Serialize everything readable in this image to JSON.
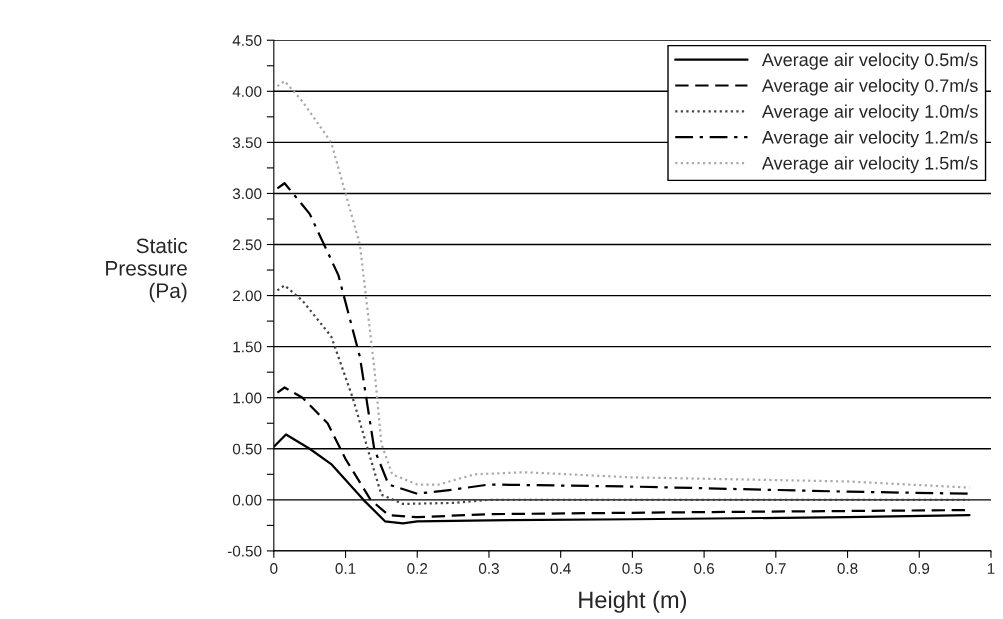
{
  "chart_data": {
    "type": "line",
    "xlabel": "Height (m)",
    "ylabel": "Static\nPressure\n(Pa)",
    "xlim": [
      0,
      1
    ],
    "xticks": [
      0,
      0.1,
      0.2,
      0.3,
      0.4,
      0.5,
      0.6,
      0.7,
      0.8,
      0.9,
      1
    ],
    "ylim": [
      -0.5,
      4.5
    ],
    "yticks": [
      {
        "value": -0.5,
        "label": "-0.50"
      },
      {
        "value": -0.25,
        "label": null
      },
      {
        "value": 0,
        "label": "0.00"
      },
      {
        "value": 0.25,
        "label": null
      },
      {
        "value": 0.5,
        "label": "0.50"
      },
      {
        "value": 0.75,
        "label": null
      },
      {
        "value": 1,
        "label": "1.00"
      },
      {
        "value": 1.25,
        "label": null
      },
      {
        "value": 1.5,
        "label": "1.50"
      },
      {
        "value": 1.75,
        "label": null
      },
      {
        "value": 2,
        "label": "2.00"
      },
      {
        "value": 2.25,
        "label": null
      },
      {
        "value": 2.5,
        "label": "2.50"
      },
      {
        "value": 2.75,
        "label": null
      },
      {
        "value": 3,
        "label": "3.00"
      },
      {
        "value": 3.25,
        "label": null
      },
      {
        "value": 3.5,
        "label": "3.50"
      },
      {
        "value": 3.75,
        "label": null
      },
      {
        "value": 4,
        "label": "4.00"
      },
      {
        "value": 4.25,
        "label": null
      },
      {
        "value": 4.5,
        "label": "4.50"
      }
    ],
    "grid": "y",
    "legend": "top right",
    "series": [
      {
        "name": "Average air velocity 0.5m/s",
        "color": "#000000",
        "line_style": "solid",
        "x": [
          0,
          0.017,
          0.05,
          0.08,
          0.125,
          0.155,
          0.18,
          0.2,
          0.3,
          0.5,
          0.8,
          0.97
        ],
        "values": [
          0.52,
          0.64,
          0.5,
          0.35,
          0.0,
          -0.21,
          -0.23,
          -0.21,
          -0.2,
          -0.19,
          -0.17,
          -0.15
        ]
      },
      {
        "name": "Average air velocity 0.7m/s",
        "color": "#000000",
        "line_style": "dashed",
        "x": [
          0.005,
          0.015,
          0.04,
          0.075,
          0.1,
          0.135,
          0.16,
          0.2,
          0.3,
          0.6,
          0.97
        ],
        "values": [
          1.05,
          1.1,
          1.0,
          0.75,
          0.4,
          0.0,
          -0.15,
          -0.17,
          -0.14,
          -0.12,
          -0.1
        ]
      },
      {
        "name": "Average air velocity 1.0m/s",
        "color": "#444444",
        "line_style": "dotted",
        "x": [
          0.005,
          0.015,
          0.04,
          0.08,
          0.11,
          0.135,
          0.15,
          0.18,
          0.25,
          0.3,
          0.97
        ],
        "values": [
          2.05,
          2.1,
          1.95,
          1.6,
          1.0,
          0.4,
          0.05,
          -0.04,
          -0.03,
          0.0,
          0.0
        ]
      },
      {
        "name": "Average air velocity 1.2m/s",
        "color": "#000000",
        "line_style": "dashdot",
        "x": [
          0.005,
          0.015,
          0.05,
          0.09,
          0.12,
          0.14,
          0.16,
          0.2,
          0.25,
          0.3,
          0.5,
          0.8,
          0.97
        ],
        "values": [
          3.05,
          3.1,
          2.8,
          2.2,
          1.4,
          0.5,
          0.15,
          0.06,
          0.1,
          0.15,
          0.13,
          0.08,
          0.06
        ]
      },
      {
        "name": "Average air velocity 1.5m/s",
        "color": "#aaaaaa",
        "line_style": "dotted",
        "x": [
          0.005,
          0.015,
          0.04,
          0.08,
          0.12,
          0.14,
          0.15,
          0.165,
          0.2,
          0.23,
          0.28,
          0.35,
          0.5,
          0.8,
          0.97
        ],
        "values": [
          4.05,
          4.1,
          3.9,
          3.5,
          2.5,
          1.3,
          0.55,
          0.25,
          0.15,
          0.15,
          0.25,
          0.27,
          0.22,
          0.18,
          0.12
        ]
      }
    ]
  }
}
